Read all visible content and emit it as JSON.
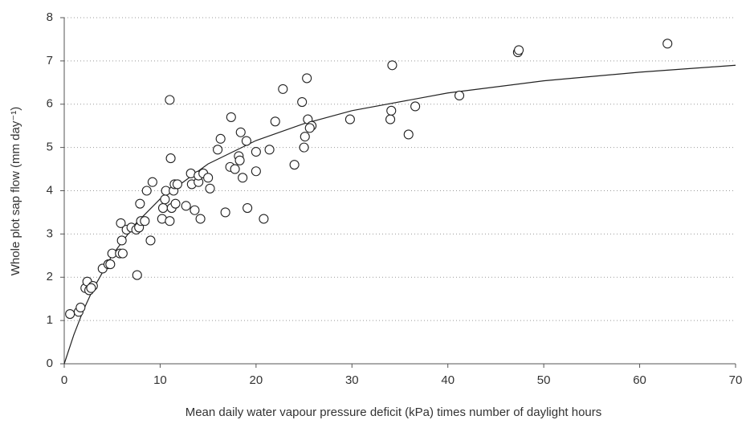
{
  "chart_data": {
    "type": "scatter",
    "x_label": "Mean daily water vapour pressure deficit (kPa) times number of daylight hours",
    "y_label": "Whole plot sap flow (mm day⁻¹)",
    "xlim": [
      0,
      70
    ],
    "ylim": [
      0,
      8
    ],
    "xticks": [
      0,
      10,
      20,
      30,
      40,
      50,
      60,
      70
    ],
    "yticks": [
      0,
      1,
      2,
      3,
      4,
      5,
      6,
      7,
      8
    ],
    "grid": true,
    "color": "#222222",
    "x": [
      0.6,
      1.5,
      1.7,
      2.2,
      2.4,
      2.6,
      3.0,
      2.8,
      4.0,
      4.6,
      4.8,
      5.0,
      5.8,
      6.1,
      6.0,
      5.9,
      6.5,
      7.0,
      7.5,
      7.8,
      7.6,
      8.0,
      8.4,
      7.9,
      8.6,
      9.2,
      9.0,
      10.2,
      10.3,
      10.5,
      10.6,
      11.0,
      11.2,
      11.1,
      11.0,
      11.4,
      11.5,
      11.8,
      11.6,
      12.7,
      13.2,
      13.3,
      13.6,
      14.0,
      14.0,
      14.5,
      14.2,
      15.0,
      15.2,
      16.0,
      16.3,
      16.8,
      17.3,
      17.4,
      17.8,
      18.2,
      18.3,
      18.4,
      18.6,
      19.0,
      19.1,
      20.0,
      20.0,
      20.8,
      21.4,
      22.0,
      22.8,
      24.0,
      24.8,
      25.0,
      25.1,
      25.3,
      25.4,
      25.8,
      25.6,
      29.8,
      34.0,
      34.1,
      34.2,
      35.9,
      36.6,
      41.2,
      47.3,
      47.4,
      62.9
    ],
    "values": [
      1.15,
      1.2,
      1.3,
      1.75,
      1.9,
      1.7,
      1.8,
      1.75,
      2.2,
      2.3,
      2.3,
      2.55,
      2.55,
      2.55,
      2.85,
      3.25,
      3.1,
      3.15,
      3.1,
      3.15,
      2.05,
      3.3,
      3.3,
      3.7,
      4.0,
      4.2,
      2.85,
      3.35,
      3.6,
      3.8,
      4.0,
      3.3,
      3.6,
      4.75,
      6.1,
      4.0,
      4.15,
      4.15,
      3.7,
      3.65,
      4.4,
      4.15,
      3.55,
      4.2,
      4.35,
      4.4,
      3.35,
      4.3,
      4.05,
      4.95,
      5.2,
      3.5,
      4.55,
      5.7,
      4.5,
      4.8,
      4.7,
      5.35,
      4.3,
      5.15,
      3.6,
      4.9,
      4.45,
      3.35,
      4.95,
      5.6,
      6.35,
      4.6,
      6.05,
      5.0,
      5.25,
      6.6,
      5.65,
      5.5,
      5.45,
      5.65,
      5.65,
      5.85,
      6.9,
      5.3,
      5.95,
      6.2,
      7.2,
      7.25,
      7.4
    ],
    "fit": {
      "x": [
        0,
        1,
        2,
        3,
        5,
        7.5,
        10,
        15,
        20,
        25,
        30,
        40,
        50,
        60,
        70
      ],
      "values": [
        0,
        0.67,
        1.24,
        1.72,
        2.51,
        3.25,
        3.81,
        4.62,
        5.16,
        5.55,
        5.85,
        6.26,
        6.54,
        6.74,
        6.9
      ]
    }
  }
}
